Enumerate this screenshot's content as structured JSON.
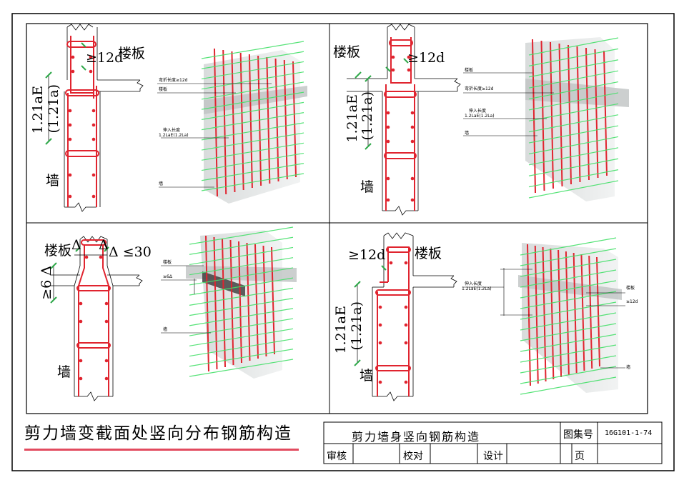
{
  "panels": {
    "p1": {
      "slab_label": "楼板",
      "bend_label": "≥12d",
      "wall_label": "墙",
      "anchor_label": "1.21aE",
      "anchor_sub_label": "(1.21a)",
      "callout_bend": "弯折长度≥12d",
      "callout_slab": "楼板",
      "callout_anchor_1": "伸入长度",
      "callout_anchor_2": "1.2LaE(1.2La)",
      "callout_wall": "墙"
    },
    "p2": {
      "slab_label": "楼板",
      "bend_label": "≥12d",
      "wall_label": "墙",
      "anchor_label": "1.21aE",
      "anchor_sub_label": "(1.21a)",
      "callout_slab": "楼板",
      "callout_bend": "弯折长度≥12d",
      "callout_anchor_1": "伸入长度",
      "callout_anchor_2": "1.2LaE(1.2La)",
      "callout_wall": "墙"
    },
    "p3": {
      "slab_label": "楼板",
      "delta_left": "Δ",
      "delta_right": "Δ",
      "delta_rule": "Δ ≤30",
      "slope_label": "≥6 Δ",
      "wall_label": "墙",
      "callout_slab": "楼板",
      "callout_slope": "≥6Δ",
      "callout_wall": "墙"
    },
    "p4": {
      "slab_label": "楼板",
      "bend_label": "≥12d",
      "wall_label": "墙",
      "anchor_label": "1.21aE",
      "anchor_sub_label": "(1.21a)",
      "callout_anchor_1": "伸入长度",
      "callout_anchor_2": "1.2LaE(1.2La)",
      "callout_slab": "楼板",
      "callout_bend": "≥12d",
      "callout_wall": "墙"
    }
  },
  "title_left": "剪力墙变截面处竖向分布钢筋构造",
  "title_block": {
    "title": "剪力墙身竖向钢筋构造",
    "atlas_label": "图集号",
    "atlas_no": "16G101-1-74",
    "review": "审核",
    "check": "校对",
    "design": "设计",
    "page": "页"
  },
  "colors": {
    "rebar": "#e0242f",
    "distribution": "#45e06a",
    "concrete": "#d9dcdc"
  }
}
